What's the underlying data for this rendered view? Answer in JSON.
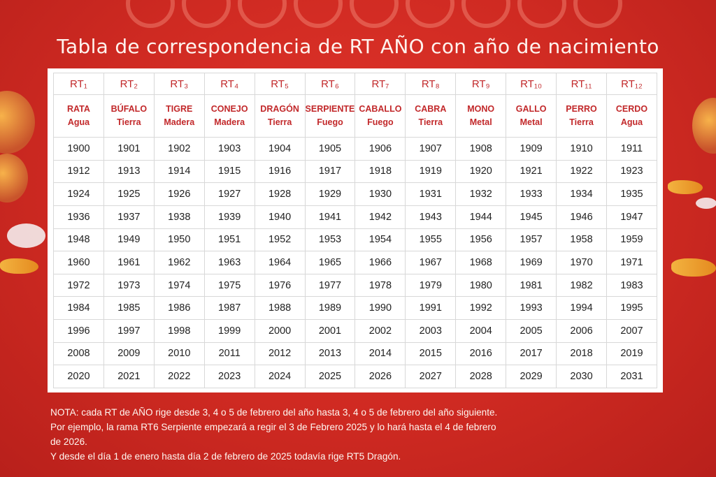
{
  "title": "Tabla de correspondencia de RT AÑO con año de nacimiento",
  "columns": [
    {
      "rt": "RT₁",
      "animal": "RATA",
      "element": "Agua"
    },
    {
      "rt": "RT₂",
      "animal": "BÚFALO",
      "element": "Tierra"
    },
    {
      "rt": "RT₃",
      "animal": "TIGRE",
      "element": "Madera"
    },
    {
      "rt": "RT₄",
      "animal": "CONEJO",
      "element": "Madera"
    },
    {
      "rt": "RT₅",
      "animal": "DRAGÓN",
      "element": "Tierra"
    },
    {
      "rt": "RT₆",
      "animal": "SERPIENTE",
      "element": "Fuego"
    },
    {
      "rt": "RT₇",
      "animal": "CABALLO",
      "element": "Fuego"
    },
    {
      "rt": "RT₈",
      "animal": "CABRA",
      "element": "Tierra"
    },
    {
      "rt": "RT₉",
      "animal": "MONO",
      "element": "Metal"
    },
    {
      "rt": "RT₁₀",
      "animal": "GALLO",
      "element": "Metal"
    },
    {
      "rt": "RT₁₁",
      "animal": "PERRO",
      "element": "Tierra"
    },
    {
      "rt": "RT₁₂",
      "animal": "CERDO",
      "element": "Agua"
    }
  ],
  "rows": [
    [
      "1900",
      "1901",
      "1902",
      "1903",
      "1904",
      "1905",
      "1906",
      "1907",
      "1908",
      "1909",
      "1910",
      "1911"
    ],
    [
      "1912",
      "1913",
      "1914",
      "1915",
      "1916",
      "1917",
      "1918",
      "1919",
      "1920",
      "1921",
      "1922",
      "1923"
    ],
    [
      "1924",
      "1925",
      "1926",
      "1927",
      "1928",
      "1929",
      "1930",
      "1931",
      "1932",
      "1933",
      "1934",
      "1935"
    ],
    [
      "1936",
      "1937",
      "1938",
      "1939",
      "1940",
      "1941",
      "1942",
      "1943",
      "1944",
      "1945",
      "1946",
      "1947"
    ],
    [
      "1948",
      "1949",
      "1950",
      "1951",
      "1952",
      "1953",
      "1954",
      "1955",
      "1956",
      "1957",
      "1958",
      "1959"
    ],
    [
      "1960",
      "1961",
      "1962",
      "1963",
      "1964",
      "1965",
      "1966",
      "1967",
      "1968",
      "1969",
      "1970",
      "1971"
    ],
    [
      "1972",
      "1973",
      "1974",
      "1975",
      "1976",
      "1977",
      "1978",
      "1979",
      "1980",
      "1981",
      "1982",
      "1983"
    ],
    [
      "1984",
      "1985",
      "1986",
      "1987",
      "1988",
      "1989",
      "1990",
      "1991",
      "1992",
      "1993",
      "1994",
      "1995"
    ],
    [
      "1996",
      "1997",
      "1998",
      "1999",
      "2000",
      "2001",
      "2002",
      "2003",
      "2004",
      "2005",
      "2006",
      "2007"
    ],
    [
      "2008",
      "2009",
      "2010",
      "2011",
      "2012",
      "2013",
      "2014",
      "2015",
      "2016",
      "2017",
      "2018",
      "2019"
    ],
    [
      "2020",
      "2021",
      "2022",
      "2023",
      "2024",
      "2025",
      "2026",
      "2027",
      "2028",
      "2029",
      "2030",
      "2031"
    ]
  ],
  "note": {
    "line1": "NOTA: cada RT de AÑO rige desde 3, 4 o 5 de febrero del año hasta 3, 4 o 5 de febrero del año siguiente.",
    "line2": "Por ejemplo, la rama RT6 Serpiente empezará a regir el 3 de Febrero 2025 y lo hará hasta el 4 de febrero",
    "line3": "de 2026.",
    "line4": "Y desde el día 1 de enero hasta día 2 de febrero de 2025 todavía rige RT5 Dragón."
  },
  "colors": {
    "background": "#cf2a22",
    "header_text": "#c2282a",
    "title_text": "#fff3ee"
  }
}
